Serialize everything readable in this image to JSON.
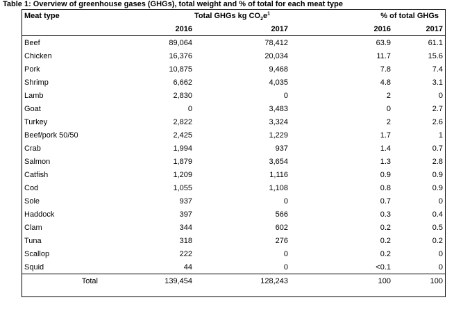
{
  "caption": "Table 1: Overview of greenhouse gases (GHGs), total weight and % of total for each meat type",
  "headers": {
    "meat_type": "Meat type",
    "ghg_prefix": "Total GHGs kg CO",
    "ghg_sub": "2",
    "ghg_suffix": "e",
    "ghg_sup": "1",
    "pct": "% of total GHGs",
    "year_a": "2016",
    "year_b": "2017"
  },
  "rows": [
    {
      "type": "Beef",
      "ghg2016": "89,064",
      "ghg2017": "78,412",
      "pct2016": "63.9",
      "pct2017": "61.1"
    },
    {
      "type": "Chicken",
      "ghg2016": "16,376",
      "ghg2017": "20,034",
      "pct2016": "11.7",
      "pct2017": "15.6"
    },
    {
      "type": "Pork",
      "ghg2016": "10,875",
      "ghg2017": "9,468",
      "pct2016": "7.8",
      "pct2017": "7.4"
    },
    {
      "type": "Shrimp",
      "ghg2016": "6,662",
      "ghg2017": "4,035",
      "pct2016": "4.8",
      "pct2017": "3.1"
    },
    {
      "type": "Lamb",
      "ghg2016": "2,830",
      "ghg2017": "0",
      "pct2016": "2",
      "pct2017": "0"
    },
    {
      "type": "Goat",
      "ghg2016": "0",
      "ghg2017": "3,483",
      "pct2016": "0",
      "pct2017": "2.7"
    },
    {
      "type": "Turkey",
      "ghg2016": "2,822",
      "ghg2017": "3,324",
      "pct2016": "2",
      "pct2017": "2.6"
    },
    {
      "type": "Beef/pork 50/50",
      "ghg2016": "2,425",
      "ghg2017": "1,229",
      "pct2016": "1.7",
      "pct2017": "1"
    },
    {
      "type": "Crab",
      "ghg2016": "1,994",
      "ghg2017": "937",
      "pct2016": "1.4",
      "pct2017": "0.7"
    },
    {
      "type": "Salmon",
      "ghg2016": "1,879",
      "ghg2017": "3,654",
      "pct2016": "1.3",
      "pct2017": "2.8"
    },
    {
      "type": "Catfish",
      "ghg2016": "1,209",
      "ghg2017": "1,116",
      "pct2016": "0.9",
      "pct2017": "0.9"
    },
    {
      "type": "Cod",
      "ghg2016": "1,055",
      "ghg2017": "1,108",
      "pct2016": "0.8",
      "pct2017": "0.9"
    },
    {
      "type": "Sole",
      "ghg2016": "937",
      "ghg2017": "0",
      "pct2016": "0.7",
      "pct2017": "0"
    },
    {
      "type": "Haddock",
      "ghg2016": "397",
      "ghg2017": "566",
      "pct2016": "0.3",
      "pct2017": "0.4"
    },
    {
      "type": "Clam",
      "ghg2016": "344",
      "ghg2017": "602",
      "pct2016": "0.2",
      "pct2017": "0.5"
    },
    {
      "type": "Tuna",
      "ghg2016": "318",
      "ghg2017": "276",
      "pct2016": "0.2",
      "pct2017": "0.2"
    },
    {
      "type": "Scallop",
      "ghg2016": "222",
      "ghg2017": "0",
      "pct2016": "0.2",
      "pct2017": "0"
    },
    {
      "type": "Squid",
      "ghg2016": "44",
      "ghg2017": "0",
      "pct2016": "<0.1",
      "pct2017": "0"
    }
  ],
  "total": {
    "label": "Total",
    "ghg2016": "139,454",
    "ghg2017": "128,243",
    "pct2016": "100",
    "pct2017": "100"
  }
}
